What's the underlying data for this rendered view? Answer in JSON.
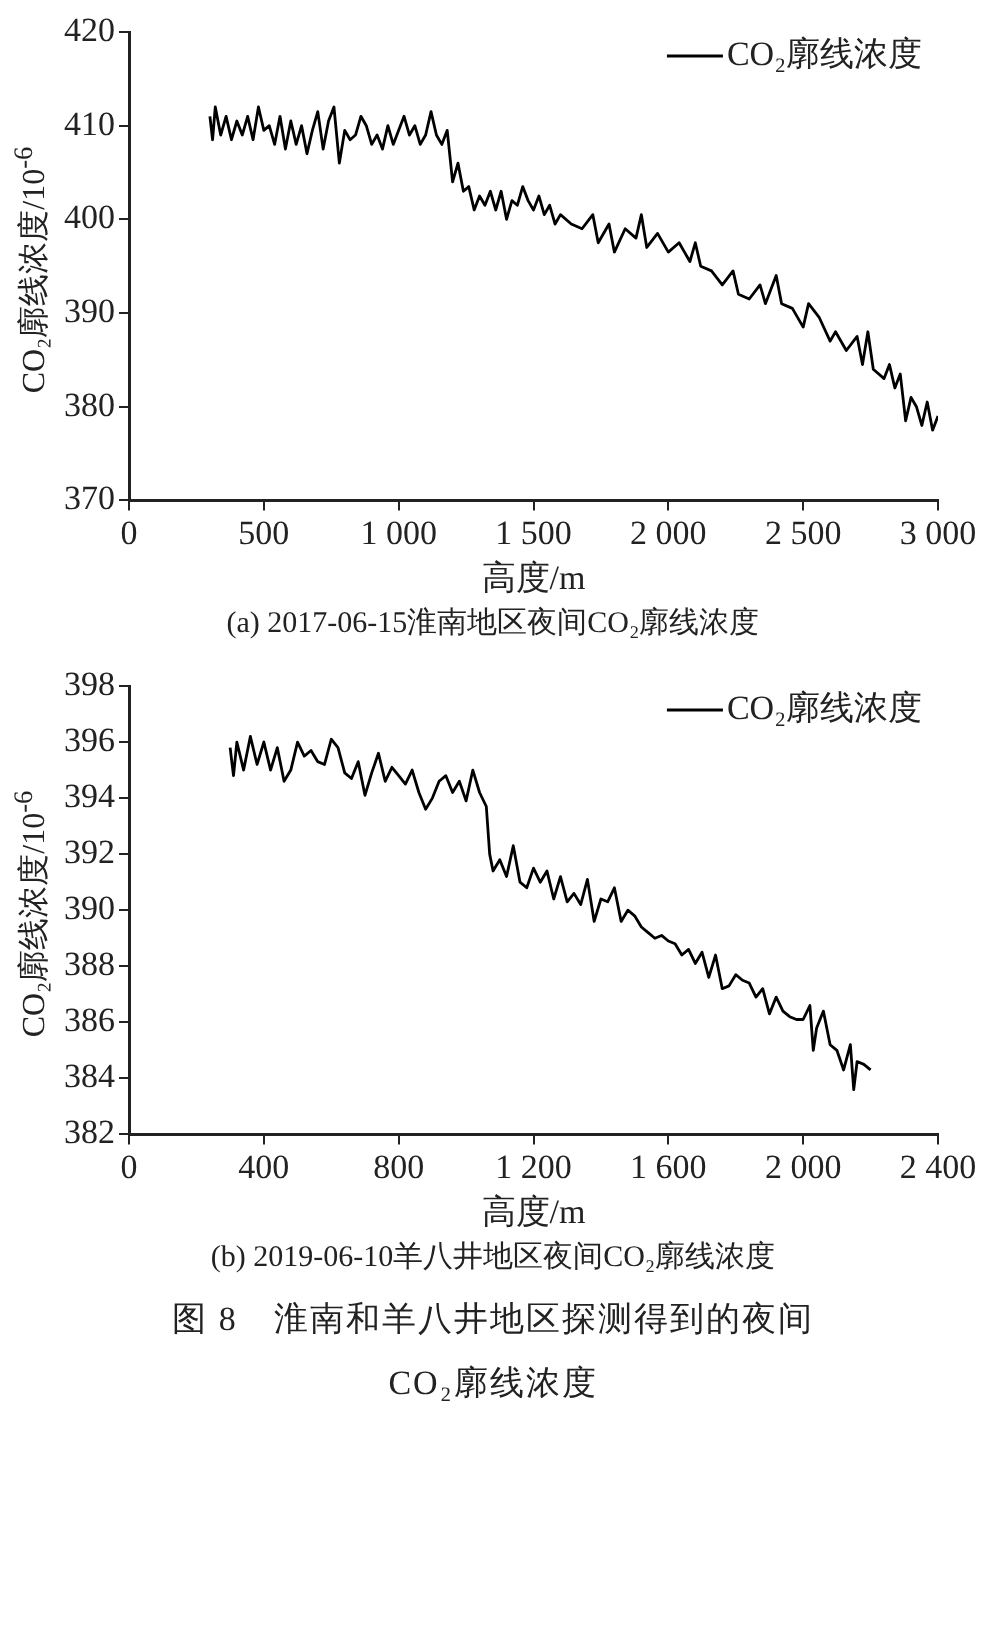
{
  "chart_data": [
    {
      "type": "line",
      "xlabel": "高度/m",
      "ylabel": "CO₂廓线浓度/10$^{-6}$",
      "legend": "top right",
      "marker": "none",
      "line_style": "solid",
      "grid": false,
      "xlim": [
        0,
        3000
      ],
      "xticks": [
        0,
        500,
        {
          "value": 1000,
          "label": "1 000"
        },
        {
          "value": 1500,
          "label": "1 500"
        },
        {
          "value": 2000,
          "label": "2 000"
        },
        {
          "value": 2500,
          "label": "2 500"
        },
        {
          "value": 3000,
          "label": "3 000"
        }
      ],
      "ylim": [
        370,
        420
      ],
      "yticks": [
        370,
        380,
        390,
        400,
        410,
        420
      ],
      "annotations": [
        "(a) 2017-06-15淮南地区夜间CO₂廓线浓度"
      ],
      "series": [
        {
          "name": "CO₂廓线浓度",
          "color": "#000000",
          "x": [
            300,
            310,
            320,
            340,
            360,
            380,
            400,
            420,
            440,
            460,
            480,
            500,
            520,
            540,
            560,
            580,
            600,
            620,
            640,
            660,
            680,
            700,
            720,
            740,
            760,
            780,
            800,
            820,
            840,
            860,
            880,
            900,
            920,
            940,
            960,
            980,
            1000,
            1020,
            1040,
            1060,
            1080,
            1100,
            1120,
            1140,
            1160,
            1180,
            1200,
            1220,
            1240,
            1260,
            1280,
            1300,
            1320,
            1340,
            1360,
            1380,
            1400,
            1420,
            1440,
            1460,
            1480,
            1500,
            1520,
            1540,
            1560,
            1580,
            1600,
            1640,
            1680,
            1720,
            1740,
            1780,
            1800,
            1840,
            1880,
            1900,
            1920,
            1960,
            2000,
            2040,
            2080,
            2100,
            2120,
            2160,
            2200,
            2240,
            2260,
            2300,
            2340,
            2360,
            2400,
            2420,
            2460,
            2500,
            2520,
            2560,
            2600,
            2620,
            2660,
            2700,
            2720,
            2740,
            2760,
            2800,
            2820,
            2840,
            2860,
            2880,
            2900,
            2920,
            2940,
            2960,
            2980,
            3000
          ],
          "values": [
            411,
            408.5,
            412,
            409,
            411,
            408.5,
            410.5,
            409,
            411,
            408.5,
            412,
            409.5,
            410,
            408,
            411,
            407.5,
            410.5,
            408,
            410,
            407,
            409.5,
            411.5,
            407.5,
            410.5,
            412,
            406,
            409.5,
            408.5,
            409,
            411,
            410,
            408,
            409,
            407.5,
            410,
            408,
            409.5,
            411,
            409,
            410,
            408,
            409,
            411.5,
            409,
            408,
            409.5,
            404,
            406,
            403,
            403.5,
            401,
            402.5,
            401.5,
            403,
            401,
            403,
            400,
            402,
            401.5,
            403.5,
            402,
            401,
            402.5,
            400.5,
            401.5,
            399.5,
            400.5,
            399.5,
            399,
            400.5,
            397.5,
            399.5,
            396.5,
            399,
            398,
            400.5,
            397,
            398.5,
            396.5,
            397.5,
            395.5,
            397.5,
            395,
            394.5,
            393,
            394.5,
            392,
            391.5,
            393,
            391,
            394,
            391,
            390.5,
            388.5,
            391,
            389.5,
            387,
            388,
            386,
            387.5,
            384.5,
            388,
            384,
            383,
            384.5,
            382,
            383.5,
            378.5,
            381,
            380,
            378,
            380.5,
            377.5,
            379
          ]
        }
      ]
    },
    {
      "type": "line",
      "xlabel": "高度/m",
      "ylabel": "CO₂廓线浓度/10$^{-6}$",
      "legend": "top right",
      "marker": "none",
      "line_style": "solid",
      "grid": false,
      "xlim": [
        0,
        2400
      ],
      "xticks": [
        0,
        400,
        800,
        {
          "value": 1200,
          "label": "1 200"
        },
        {
          "value": 1600,
          "label": "1 600"
        },
        {
          "value": 2000,
          "label": "2 000"
        },
        {
          "value": 2400,
          "label": "2 400"
        }
      ],
      "ylim": [
        382,
        398
      ],
      "yticks": [
        382,
        384,
        386,
        388,
        390,
        392,
        394,
        396,
        398
      ],
      "annotations": [
        "(b) 2019-06-10羊八井地区夜间CO₂廓线浓度",
        "图 8　淮南和羊八井地区探测得到的夜间CO₂廓线浓度"
      ],
      "series": [
        {
          "name": "CO₂廓线浓度",
          "color": "#000000",
          "x": [
            300,
            310,
            320,
            340,
            360,
            380,
            400,
            420,
            440,
            460,
            480,
            500,
            520,
            540,
            560,
            580,
            600,
            620,
            640,
            660,
            680,
            700,
            720,
            740,
            760,
            780,
            800,
            820,
            840,
            860,
            880,
            900,
            920,
            940,
            960,
            980,
            1000,
            1020,
            1040,
            1060,
            1070,
            1080,
            1100,
            1120,
            1140,
            1160,
            1180,
            1200,
            1220,
            1240,
            1260,
            1280,
            1300,
            1320,
            1340,
            1360,
            1380,
            1400,
            1420,
            1440,
            1460,
            1480,
            1500,
            1520,
            1540,
            1560,
            1580,
            1600,
            1620,
            1640,
            1660,
            1680,
            1700,
            1720,
            1740,
            1760,
            1780,
            1800,
            1820,
            1840,
            1860,
            1880,
            1900,
            1920,
            1940,
            1960,
            1980,
            2000,
            2020,
            2030,
            2040,
            2060,
            2080,
            2100,
            2120,
            2140,
            2150,
            2160,
            2180,
            2200
          ],
          "values": [
            395.8,
            394.8,
            396,
            395,
            396.2,
            395.2,
            396,
            395,
            395.8,
            394.6,
            395,
            396,
            395.5,
            395.7,
            395.3,
            395.2,
            396.1,
            395.8,
            394.9,
            394.7,
            395.3,
            394.1,
            394.9,
            395.6,
            394.6,
            395.1,
            394.8,
            394.5,
            395,
            394.2,
            393.6,
            394,
            394.6,
            394.8,
            394.2,
            394.6,
            393.9,
            395,
            394.2,
            393.7,
            392,
            391.4,
            391.8,
            391.2,
            392.3,
            391,
            390.8,
            391.5,
            391,
            391.4,
            390.4,
            391.2,
            390.3,
            390.6,
            390.2,
            391.1,
            389.6,
            390.4,
            390.3,
            390.8,
            389.6,
            390,
            389.8,
            389.4,
            389.2,
            389,
            389.1,
            388.9,
            388.8,
            388.4,
            388.6,
            388.1,
            388.5,
            387.6,
            388.4,
            387.2,
            387.3,
            387.7,
            387.5,
            387.4,
            386.9,
            387.2,
            386.3,
            386.9,
            386.4,
            386.2,
            386.1,
            386.1,
            386.6,
            385,
            385.8,
            386.4,
            385.2,
            385,
            384.3,
            385.2,
            383.6,
            384.6,
            384.5,
            384.3
          ]
        }
      ]
    }
  ]
}
